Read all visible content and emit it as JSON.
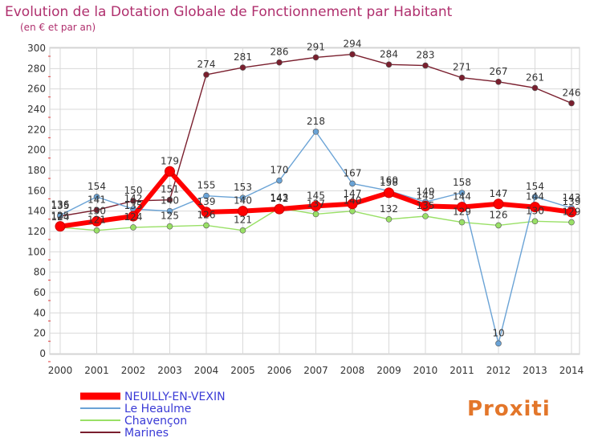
{
  "chart_data": {
    "type": "line",
    "title": "Evolution de la Dotation Globale de Fonctionnement par Habitant",
    "subtitle": "(en € et par an)",
    "xlabel": "",
    "ylabel": "",
    "ylim": [
      0,
      300
    ],
    "y_ticks": [
      0,
      20,
      40,
      60,
      80,
      100,
      120,
      140,
      160,
      180,
      200,
      220,
      240,
      260,
      280,
      300
    ],
    "categories": [
      "2000",
      "2001",
      "2002",
      "2003",
      "2004",
      "2005",
      "2006",
      "2007",
      "2008",
      "2009",
      "2010",
      "2011",
      "2012",
      "2013",
      "2014"
    ],
    "grid": true,
    "series": [
      {
        "name": "NEUILLY-EN-VEXIN",
        "color": "#ff0000",
        "values": [
          125,
          130,
          135,
          179,
          139,
          140,
          142,
          145,
          147,
          158,
          145,
          144,
          147,
          144,
          139
        ]
      },
      {
        "name": "Le Heaulme",
        "color": "#6aa3d6",
        "values": [
          136,
          154,
          142,
          140,
          155,
          153,
          170,
          218,
          167,
          160,
          149,
          158,
          10,
          154,
          143
        ]
      },
      {
        "name": "Chavençon",
        "color": "#99e066",
        "values": [
          124,
          121,
          124,
          125,
          126,
          121,
          143,
          137,
          140,
          132,
          135,
          129,
          126,
          130,
          129
        ]
      },
      {
        "name": "Marines",
        "color": "#7a1f2e",
        "values": [
          135,
          141,
          150,
          151,
          274,
          281,
          286,
          291,
          294,
          284,
          283,
          271,
          267,
          261,
          246
        ]
      }
    ]
  },
  "brand": {
    "logo": "Proxiti"
  }
}
